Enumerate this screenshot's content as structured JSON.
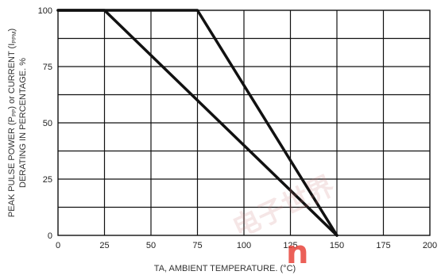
{
  "chart_data": {
    "type": "line",
    "xlabel": "TA, AMBIENT TEMPERATURE. (°C)",
    "ylabel_line1": "PEAK PULSE POWER (P",
    "ylabel_line1_sub": "PP",
    "ylabel_line1_mid": ") or CURRENT (I",
    "ylabel_line1_sub2": "PPM",
    "ylabel_line1_end": ")",
    "ylabel_line2": "DERATING IN PERCENTAGE. %",
    "xlim": [
      0,
      200
    ],
    "ylim": [
      0,
      100
    ],
    "x_ticks": [
      0,
      25,
      50,
      75,
      100,
      125,
      150,
      175,
      200
    ],
    "y_ticks": [
      0,
      25,
      50,
      75,
      100
    ],
    "x_grid_step": 25,
    "y_grid_step": 12.5,
    "grid": true,
    "series": [
      {
        "x": [
          0,
          25,
          150
        ],
        "y": [
          100,
          100,
          0
        ]
      },
      {
        "x": [
          0,
          75,
          150
        ],
        "y": [
          100,
          100,
          0
        ]
      }
    ],
    "series_color": "#111111"
  },
  "watermark": {
    "text": "n",
    "color": "#e8453c"
  }
}
